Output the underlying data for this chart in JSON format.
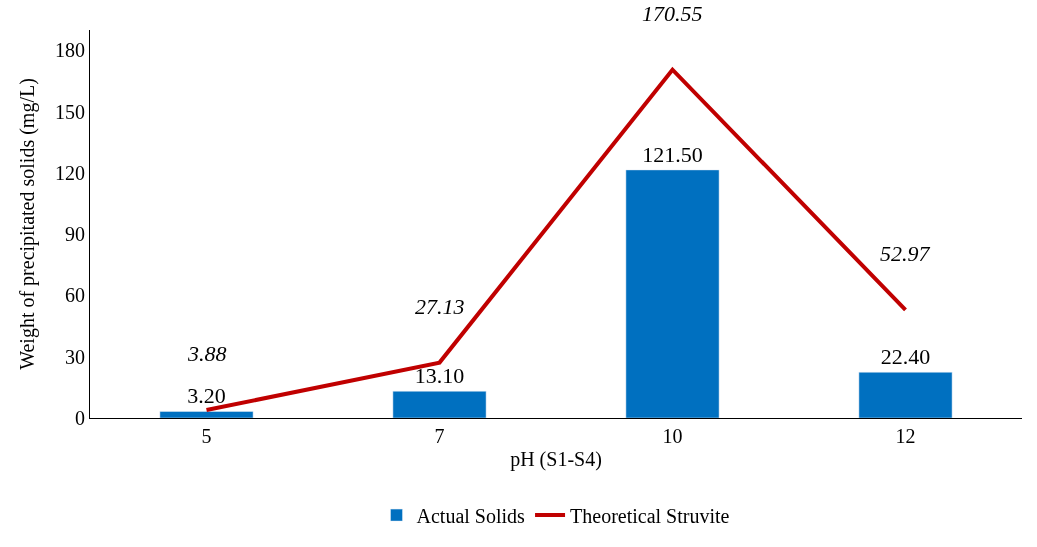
{
  "chart_data": {
    "type": "bar",
    "xlabel": "pH (S1-S4)",
    "ylabel": "Weight of precipitated solids (mg/L)",
    "categories": [
      "5",
      "7",
      "10",
      "12"
    ],
    "series": [
      {
        "name": "Actual Solids",
        "color": "#0070c0",
        "values": [
          3.2,
          13.1,
          121.5,
          22.4
        ],
        "value_labels": [
          "3.20",
          "13.10",
          "121.50",
          "22.40"
        ]
      },
      {
        "name": "Theoretical Struvite",
        "type": "line",
        "color": "#c00000",
        "values": [
          3.88,
          27.13,
          170.55,
          52.97
        ],
        "value_labels": [
          "3.88",
          "27.13",
          "170.55",
          "52.97"
        ]
      }
    ],
    "ylim": [
      0,
      190
    ],
    "yticks": [
      0,
      30,
      60,
      90,
      120,
      150,
      180
    ],
    "grid": false,
    "legend": "bottom",
    "marker": "none",
    "line_style": "solid"
  }
}
